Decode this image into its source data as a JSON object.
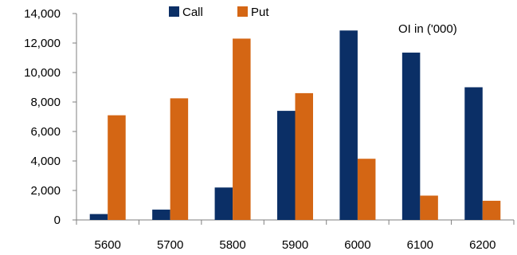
{
  "chart_data": {
    "type": "bar",
    "categories": [
      "5600",
      "5700",
      "5800",
      "5900",
      "6000",
      "6100",
      "6200"
    ],
    "series": [
      {
        "name": "Call",
        "color": "#0b2f66",
        "values": [
          400,
          700,
          2200,
          7400,
          12850,
          11350,
          9000
        ]
      },
      {
        "name": "Put",
        "color": "#d46614",
        "values": [
          7100,
          8250,
          12300,
          8600,
          4150,
          1650,
          1300
        ]
      }
    ],
    "title": "",
    "xlabel": "",
    "ylabel": "",
    "ylim": [
      0,
      14000
    ],
    "yticks": [
      0,
      2000,
      4000,
      6000,
      8000,
      10000,
      12000,
      14000
    ],
    "ytick_labels": [
      "0",
      "2,000",
      "4,000",
      "6,000",
      "8,000",
      "10,000",
      "12,000",
      "14,000"
    ],
    "grid": false,
    "legend_position": "top-center",
    "annotation": "OI in ('000)"
  }
}
